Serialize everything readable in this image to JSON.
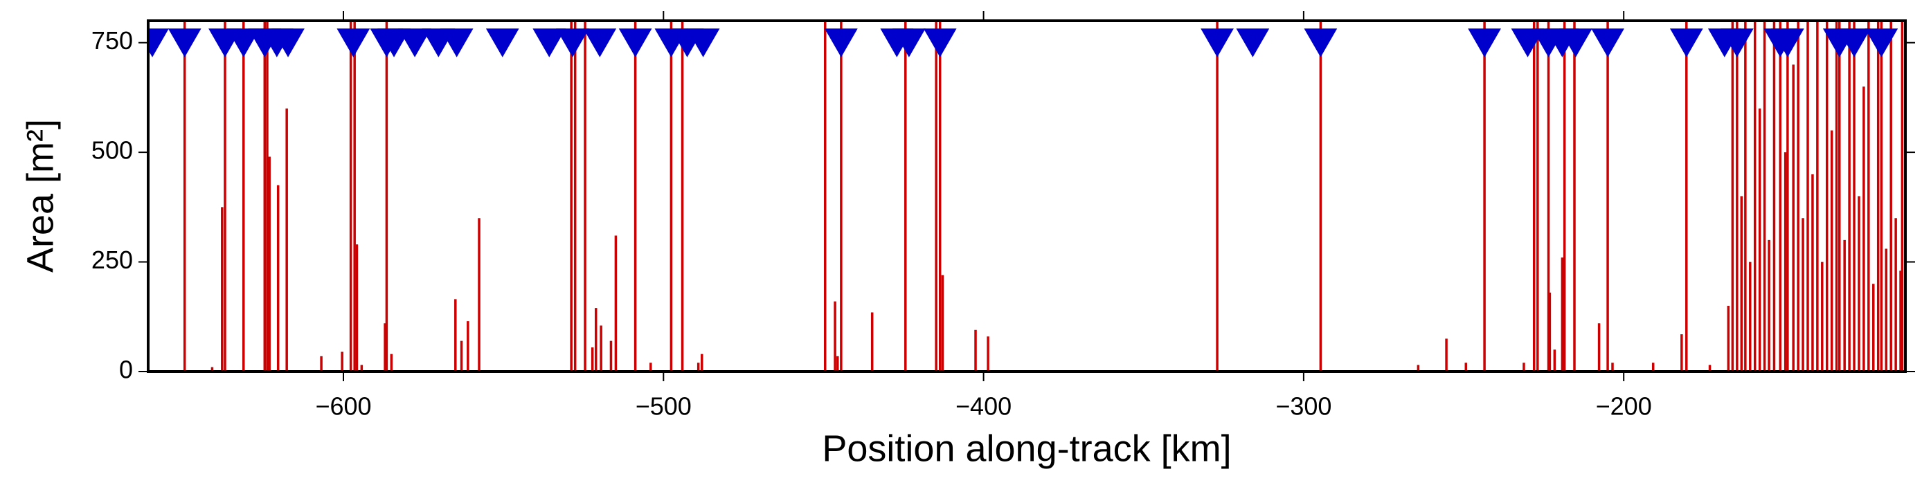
{
  "chart_data": {
    "type": "impulse",
    "xlabel": "Position along-track [km]",
    "ylabel": "Area [m²]",
    "xlim": [
      -661,
      -112
    ],
    "ylim": [
      0,
      800
    ],
    "xticks": [
      {
        "value": -600,
        "label": "−600"
      },
      {
        "value": -500,
        "label": "−500"
      },
      {
        "value": -400,
        "label": "−400"
      },
      {
        "value": -300,
        "label": "−300"
      },
      {
        "value": -200,
        "label": "−200"
      }
    ],
    "yticks": [
      0,
      250,
      500,
      750
    ],
    "series": [
      {
        "type": "impulse",
        "color": "#cc0000",
        "x": [
          -649.6,
          -641,
          -637.9,
          -637.0,
          -631.2,
          -624.6,
          -623.8,
          -623.1,
          -620.4,
          -617.7,
          -606.9,
          -600.4,
          -597.7,
          -596.5,
          -595.8,
          -594.3,
          -587,
          -586.5,
          -585,
          -565,
          -563.1,
          -561.1,
          -557.6,
          -528.8,
          -527.6,
          -524.5,
          -522.2,
          -521.1,
          -519.5,
          -516.4,
          -514.9,
          -508.8,
          -504,
          -497.6,
          -494.1,
          -489.1,
          -488,
          -449.5,
          -446.4,
          -445.6,
          -444.5,
          -434.8,
          -424.4,
          -414.8,
          -413.6,
          -412.8,
          -402.5,
          -398.6,
          -327.0,
          -294.7,
          -264.2,
          -255.4,
          -249.3,
          -243.5,
          -231.2,
          -228,
          -226.9,
          -223.5,
          -223.1,
          -221.6,
          -219.2,
          -218.5,
          -215.4,
          -207.7,
          -205.0,
          -203.5,
          -190.8,
          -181.9,
          -180.4,
          -173.1,
          -167.3,
          -166,
          -164.6,
          -163.2,
          -162,
          -160.5,
          -159,
          -157.5,
          -156,
          -154.6,
          -153,
          -151.1,
          -149.5,
          -148.8,
          -147,
          -145.5,
          -144,
          -142.5,
          -141,
          -139.5,
          -138,
          -136.5,
          -135,
          -133.5,
          -132.6,
          -131,
          -129.5,
          -128,
          -126.5,
          -125,
          -123.5,
          -122,
          -120.5,
          -119.5,
          -118,
          -116.5,
          -115,
          -113.5,
          -113
        ],
        "values": [
          900,
          10,
          375,
          900,
          900,
          900,
          900,
          490,
          425,
          600,
          35,
          45,
          900,
          900,
          290,
          15,
          110,
          900,
          40,
          165,
          70,
          115,
          350,
          900,
          900,
          900,
          55,
          145,
          105,
          70,
          310,
          900,
          20,
          900,
          900,
          20,
          40,
          900,
          160,
          35,
          900,
          135,
          900,
          900,
          900,
          220,
          95,
          80,
          900,
          900,
          15,
          75,
          20,
          900,
          20,
          900,
          900,
          900,
          180,
          50,
          260,
          900,
          900,
          110,
          900,
          20,
          20,
          85,
          900,
          15,
          150,
          900,
          900,
          400,
          900,
          250,
          900,
          600,
          900,
          300,
          900,
          900,
          500,
          900,
          700,
          900,
          350,
          900,
          450,
          900,
          250,
          900,
          550,
          900,
          900,
          300,
          900,
          900,
          400,
          650,
          900,
          200,
          900,
          900,
          280,
          900,
          350,
          230,
          900
        ]
      },
      {
        "type": "triangle",
        "color": "#0000cc",
        "x": [
          -659.7,
          -649.6,
          -637.0,
          -631.2,
          -624.6,
          -620.8,
          -617.3,
          -596.9,
          -586.5,
          -584.2,
          -577.7,
          -570.3,
          -564.6,
          -550.3,
          -535.7,
          -528.4,
          -519.9,
          -508.8,
          -497.6,
          -492.6,
          -487.6,
          -444.5,
          -427.1,
          -423.3,
          -413.6,
          -327.0,
          -315.9,
          -294.7,
          -243.5,
          -230.0,
          -223.5,
          -219.2,
          -215.0,
          -205.0,
          -180.4,
          -168.5,
          -164.6,
          -151.1,
          -148.8,
          -132.6,
          -128.0,
          -119.5
        ],
        "values": [
          750,
          750,
          750,
          750,
          750,
          750,
          750,
          750,
          750,
          750,
          750,
          750,
          750,
          750,
          750,
          750,
          750,
          750,
          750,
          750,
          750,
          750,
          750,
          750,
          750,
          750,
          750,
          750,
          750,
          750,
          750,
          750,
          750,
          750,
          750,
          750,
          750,
          750,
          750,
          750,
          750,
          750
        ]
      }
    ]
  }
}
